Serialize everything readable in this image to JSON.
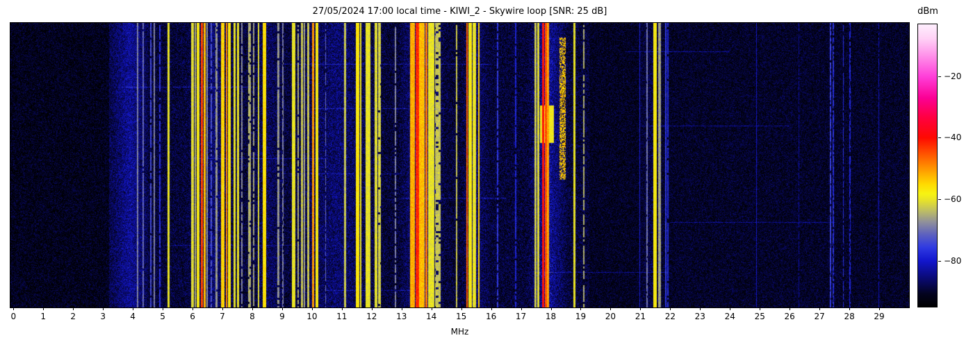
{
  "chart_data": {
    "type": "heatmap",
    "subtype": "radio-spectrum-waterfall",
    "title": "27/05/2024 17:00 local time - KIWI_2 - Skywire loop [SNR: 25 dB]",
    "xlabel": "MHz",
    "x_range": [
      -0.1,
      30.0
    ],
    "x_ticks": [
      0,
      1,
      2,
      3,
      4,
      5,
      6,
      7,
      8,
      9,
      10,
      11,
      12,
      13,
      14,
      15,
      16,
      17,
      18,
      19,
      20,
      21,
      22,
      23,
      24,
      25,
      26,
      27,
      28,
      29
    ],
    "grid": false,
    "colorbar": {
      "label": "dBm",
      "ticks": [
        -20,
        -40,
        -60,
        -80
      ],
      "range": [
        -95,
        -3
      ],
      "position": "right"
    },
    "colormap_stops": [
      [
        0.0,
        "#fdeffd"
      ],
      [
        0.05,
        "#ffd2f6"
      ],
      [
        0.1,
        "#ff9dec"
      ],
      [
        0.185,
        "#ff3fd9"
      ],
      [
        0.26,
        "#fb0095"
      ],
      [
        0.33,
        "#ff0040"
      ],
      [
        0.402,
        "#fe0a01"
      ],
      [
        0.46,
        "#ff5500"
      ],
      [
        0.52,
        "#ffa100"
      ],
      [
        0.565,
        "#ffd900"
      ],
      [
        0.6,
        "#f7f312"
      ],
      [
        0.621,
        "#e9e426"
      ],
      [
        0.66,
        "#bebe63"
      ],
      [
        0.7,
        "#90909b"
      ],
      [
        0.745,
        "#5c60c0"
      ],
      [
        0.79,
        "#2f3ae2"
      ],
      [
        0.837,
        "#1216cd"
      ],
      [
        0.9,
        "#0a0a72"
      ],
      [
        0.955,
        "#03031e"
      ],
      [
        1.0,
        "#000000"
      ]
    ],
    "noise_regions_schema": [
      "f0_mhz",
      "f1_mhz",
      "base_dbm",
      "speckle_prob",
      "speckle_lo_dbm",
      "speckle_hi_dbm"
    ],
    "noise_regions": [
      [
        0.0,
        3.2,
        -94.5,
        0.1,
        -90,
        -83
      ],
      [
        3.2,
        4.5,
        -93.0,
        0.5,
        -88,
        -78
      ],
      [
        4.5,
        19.3,
        -93.5,
        0.34,
        -89,
        -79
      ],
      [
        19.3,
        21.0,
        -94.0,
        0.2,
        -90,
        -83
      ],
      [
        21.0,
        30.0,
        -93.8,
        0.3,
        -90,
        -82
      ]
    ],
    "bands_schema": [
      "f0_mhz",
      "f1_mhz",
      "level_dbm",
      "style_solid_or_dash",
      "dash_density"
    ],
    "bands": [
      [
        4.14,
        4.18,
        -66,
        "d",
        0.5
      ],
      [
        4.33,
        4.37,
        -68,
        "d",
        0.45
      ],
      [
        4.58,
        4.62,
        -71,
        "d",
        0.4
      ],
      [
        4.7,
        4.74,
        -66,
        "d",
        0.5
      ],
      [
        4.88,
        4.92,
        -74,
        "d",
        0.35
      ],
      [
        5.16,
        5.23,
        -57,
        "d",
        0.7
      ],
      [
        5.95,
        6.05,
        -58,
        "d",
        0.55
      ],
      [
        6.07,
        6.12,
        -62,
        "d",
        0.5
      ],
      [
        6.14,
        6.23,
        -55,
        "d",
        0.7
      ],
      [
        6.29,
        6.34,
        -41,
        "s",
        1
      ],
      [
        6.37,
        6.43,
        -50,
        "d",
        0.6
      ],
      [
        6.46,
        6.5,
        -64,
        "d",
        0.5
      ],
      [
        6.6,
        6.64,
        -70,
        "d",
        0.3
      ],
      [
        6.77,
        6.84,
        -64,
        "d",
        0.45
      ],
      [
        6.95,
        7.06,
        -52,
        "d",
        0.8
      ],
      [
        7.12,
        7.17,
        -46,
        "d",
        0.65
      ],
      [
        7.19,
        7.27,
        -54,
        "d",
        0.7
      ],
      [
        7.38,
        7.44,
        -57,
        "d",
        0.6
      ],
      [
        7.5,
        7.55,
        -57,
        "d",
        0.55
      ],
      [
        7.63,
        7.67,
        -65,
        "d",
        0.4
      ],
      [
        7.86,
        7.95,
        -62,
        "d",
        0.4
      ],
      [
        8.02,
        8.08,
        -63,
        "d",
        0.35
      ],
      [
        8.19,
        8.23,
        -58,
        "d",
        0.5
      ],
      [
        8.36,
        8.46,
        -53,
        "d",
        0.9
      ],
      [
        8.84,
        8.9,
        -64,
        "d",
        0.4
      ],
      [
        9.0,
        9.04,
        -66,
        "d",
        0.35
      ],
      [
        9.32,
        9.44,
        -57,
        "d",
        0.6
      ],
      [
        9.52,
        9.56,
        -62,
        "d",
        0.4
      ],
      [
        9.64,
        9.69,
        -60,
        "d",
        0.5
      ],
      [
        9.73,
        9.77,
        -63,
        "d",
        0.5
      ],
      [
        9.85,
        9.9,
        -60,
        "d",
        0.5
      ],
      [
        10.0,
        10.08,
        -47,
        "d",
        0.6
      ],
      [
        10.13,
        10.21,
        -55,
        "d",
        0.65
      ],
      [
        10.44,
        10.48,
        -68,
        "d",
        0.3
      ],
      [
        11.08,
        11.14,
        -60,
        "d",
        0.5
      ],
      [
        11.48,
        11.58,
        -54,
        "d",
        0.75
      ],
      [
        11.6,
        11.66,
        -56,
        "d",
        0.6
      ],
      [
        11.8,
        11.95,
        -57,
        "d",
        0.55
      ],
      [
        12.1,
        12.18,
        -58,
        "d",
        0.5
      ],
      [
        12.22,
        12.3,
        -59,
        "d",
        0.45
      ],
      [
        12.78,
        12.82,
        -66,
        "d",
        0.3
      ],
      [
        13.28,
        13.45,
        -49,
        "d",
        0.6
      ],
      [
        13.47,
        13.58,
        -39,
        "s",
        1
      ],
      [
        13.59,
        13.78,
        -50,
        "s",
        1
      ],
      [
        13.79,
        13.87,
        -45,
        "s",
        1
      ],
      [
        13.88,
        14.1,
        -57,
        "d",
        0.55
      ],
      [
        14.12,
        14.3,
        -60,
        "d",
        0.35
      ],
      [
        14.82,
        14.87,
        -60,
        "d",
        0.45
      ],
      [
        15.18,
        15.22,
        -43,
        "d",
        0.7
      ],
      [
        15.24,
        15.35,
        -55,
        "d",
        0.6
      ],
      [
        15.38,
        15.5,
        -57,
        "d",
        0.5
      ],
      [
        15.57,
        15.62,
        -52,
        "s",
        1
      ],
      [
        16.2,
        16.24,
        -73,
        "d",
        0.3
      ],
      [
        16.8,
        16.84,
        -75,
        "d",
        0.35
      ],
      [
        17.45,
        17.52,
        -60,
        "d",
        0.5
      ],
      [
        17.55,
        17.62,
        -58,
        "d",
        0.5
      ],
      [
        17.72,
        17.79,
        -37,
        "s",
        1
      ],
      [
        17.81,
        17.86,
        -42,
        "s",
        1
      ],
      [
        17.87,
        17.94,
        -48,
        "d",
        0.6
      ],
      [
        18.76,
        18.82,
        -57,
        "d",
        0.5
      ],
      [
        19.08,
        19.12,
        -62,
        "d",
        0.3
      ],
      [
        20.96,
        20.99,
        -76,
        "d",
        0.5
      ],
      [
        21.19,
        21.24,
        -67,
        "d",
        0.45
      ],
      [
        21.44,
        21.56,
        -55,
        "d",
        0.65
      ],
      [
        21.6,
        21.68,
        -63,
        "d",
        0.55
      ],
      [
        21.84,
        21.87,
        -73,
        "d",
        0.5
      ],
      [
        21.91,
        21.94,
        -75,
        "d",
        0.4
      ],
      [
        24.88,
        24.91,
        -78,
        "d",
        0.5
      ],
      [
        26.3,
        26.33,
        -80,
        "d",
        0.3
      ],
      [
        27.35,
        27.39,
        -72,
        "d",
        0.35
      ],
      [
        27.44,
        27.48,
        -74,
        "d",
        0.3
      ],
      [
        27.78,
        27.82,
        -74,
        "d",
        0.25
      ],
      [
        28.0,
        28.04,
        -75,
        "d",
        0.25
      ],
      [
        28.97,
        29.0,
        -78,
        "d",
        0.4
      ]
    ],
    "glows_schema": [
      "f0_mhz",
      "f1_mhz",
      "boost_db"
    ],
    "glows": [
      [
        3.3,
        4.5,
        10
      ],
      [
        5.7,
        7.7,
        8
      ],
      [
        7.9,
        9.2,
        6
      ],
      [
        9.2,
        12.5,
        8
      ],
      [
        12.9,
        14.5,
        14
      ],
      [
        15.0,
        16.0,
        8
      ],
      [
        17.2,
        18.6,
        16
      ],
      [
        20.9,
        21.9,
        5
      ]
    ],
    "blobs_schema": [
      "f0_mhz",
      "f1_mhz",
      "y0_frac",
      "y1_frac",
      "level_dbm",
      "prob"
    ],
    "blobs": [
      [
        17.65,
        18.1,
        0.29,
        0.42,
        -56,
        0.5
      ],
      [
        18.3,
        18.5,
        0.05,
        0.55,
        -51,
        0.1
      ]
    ],
    "streaks_schema": [
      "y_frac",
      "f0_mhz",
      "f1_mhz",
      "boost_db"
    ],
    "streaks": [
      [
        0.1,
        20.5,
        24.0,
        8
      ],
      [
        0.145,
        9.0,
        16.0,
        7
      ],
      [
        0.225,
        3.5,
        8.0,
        7
      ],
      [
        0.3,
        10.0,
        14.5,
        7
      ],
      [
        0.36,
        21.0,
        26.0,
        7
      ],
      [
        0.475,
        6.0,
        10.5,
        7
      ],
      [
        0.53,
        9.0,
        13.0,
        6
      ],
      [
        0.615,
        13.0,
        16.5,
        7
      ],
      [
        0.7,
        22.0,
        27.5,
        7
      ],
      [
        0.78,
        5.0,
        9.5,
        6
      ],
      [
        0.875,
        17.5,
        22.0,
        7
      ],
      [
        0.94,
        10.5,
        14.0,
        6
      ]
    ]
  }
}
